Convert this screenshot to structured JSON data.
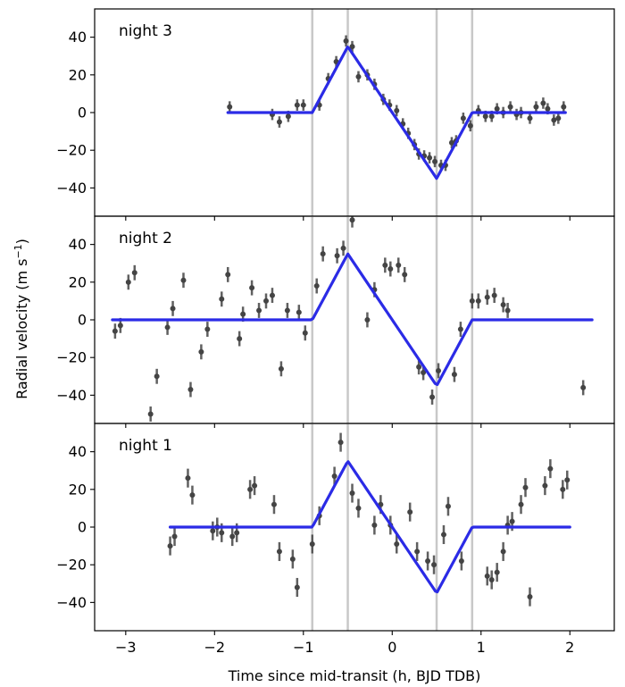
{
  "chart_data": {
    "type": "scatter",
    "xlabel": "Time since mid-transit (h, BJD TDB)",
    "ylabel": "Radial velocity (m s",
    "ylabel_exponent": "−1",
    "ylabel_close": ")",
    "xlim": [
      -3.35,
      2.5
    ],
    "ylim": [
      -55,
      55
    ],
    "x_ticks": [
      -3,
      -2,
      -1,
      0,
      1,
      2
    ],
    "y_ticks": [
      -40,
      -20,
      0,
      20,
      40
    ],
    "vertical_lines": [
      -0.9,
      -0.5,
      0.5,
      0.9
    ],
    "colors": {
      "model": "#2b2be6",
      "points": "#444444",
      "vlines": "#c8c8c8"
    },
    "model": {
      "amplitude": 35,
      "ingress_start": -0.9,
      "peak": -0.5,
      "trough": 0.5,
      "egress_end": 0.9
    },
    "panels": [
      {
        "title": "night 3",
        "model_range": [
          -1.85,
          1.95
        ],
        "points": [
          {
            "x": -1.83,
            "y": 3,
            "e": 3
          },
          {
            "x": -1.35,
            "y": -1,
            "e": 3
          },
          {
            "x": -1.27,
            "y": -5,
            "e": 3
          },
          {
            "x": -1.17,
            "y": -2,
            "e": 3
          },
          {
            "x": -1.07,
            "y": 4,
            "e": 3
          },
          {
            "x": -1.0,
            "y": 4,
            "e": 3
          },
          {
            "x": -0.82,
            "y": 4,
            "e": 3
          },
          {
            "x": -0.72,
            "y": 18,
            "e": 3
          },
          {
            "x": -0.63,
            "y": 27,
            "e": 3
          },
          {
            "x": -0.52,
            "y": 38,
            "e": 3
          },
          {
            "x": -0.45,
            "y": 35,
            "e": 3
          },
          {
            "x": -0.38,
            "y": 19,
            "e": 3
          },
          {
            "x": -0.28,
            "y": 20,
            "e": 3
          },
          {
            "x": -0.2,
            "y": 15,
            "e": 3
          },
          {
            "x": -0.1,
            "y": 7,
            "e": 3
          },
          {
            "x": -0.03,
            "y": 4,
            "e": 3
          },
          {
            "x": 0.05,
            "y": 1,
            "e": 3
          },
          {
            "x": 0.12,
            "y": -6,
            "e": 3
          },
          {
            "x": 0.18,
            "y": -11,
            "e": 3
          },
          {
            "x": 0.25,
            "y": -17,
            "e": 3
          },
          {
            "x": 0.3,
            "y": -22,
            "e": 3
          },
          {
            "x": 0.36,
            "y": -23,
            "e": 3
          },
          {
            "x": 0.42,
            "y": -24,
            "e": 3
          },
          {
            "x": 0.48,
            "y": -26,
            "e": 3
          },
          {
            "x": 0.55,
            "y": -28,
            "e": 3
          },
          {
            "x": 0.6,
            "y": -28,
            "e": 3
          },
          {
            "x": 0.67,
            "y": -16,
            "e": 3
          },
          {
            "x": 0.72,
            "y": -15,
            "e": 3
          },
          {
            "x": 0.8,
            "y": -3,
            "e": 3
          },
          {
            "x": 0.88,
            "y": -7,
            "e": 3
          },
          {
            "x": 0.97,
            "y": 1,
            "e": 3
          },
          {
            "x": 1.05,
            "y": -2,
            "e": 3
          },
          {
            "x": 1.12,
            "y": -2,
            "e": 3
          },
          {
            "x": 1.18,
            "y": 2,
            "e": 3
          },
          {
            "x": 1.25,
            "y": 0,
            "e": 3
          },
          {
            "x": 1.33,
            "y": 3,
            "e": 3
          },
          {
            "x": 1.4,
            "y": -1,
            "e": 3
          },
          {
            "x": 1.45,
            "y": 0,
            "e": 3
          },
          {
            "x": 1.55,
            "y": -3,
            "e": 3
          },
          {
            "x": 1.62,
            "y": 3,
            "e": 3
          },
          {
            "x": 1.7,
            "y": 5,
            "e": 3
          },
          {
            "x": 1.75,
            "y": 2,
            "e": 3
          },
          {
            "x": 1.82,
            "y": -4,
            "e": 3
          },
          {
            "x": 1.87,
            "y": -3,
            "e": 3
          },
          {
            "x": 1.93,
            "y": 3,
            "e": 3
          }
        ]
      },
      {
        "title": "night 2",
        "model_range": [
          -3.15,
          2.25
        ],
        "points": [
          {
            "x": -3.12,
            "y": -6,
            "e": 4
          },
          {
            "x": -3.06,
            "y": -3,
            "e": 4
          },
          {
            "x": -2.97,
            "y": 20,
            "e": 4
          },
          {
            "x": -2.9,
            "y": 25,
            "e": 4
          },
          {
            "x": -2.72,
            "y": -50,
            "e": 4
          },
          {
            "x": -2.65,
            "y": -30,
            "e": 4
          },
          {
            "x": -2.53,
            "y": -4,
            "e": 4
          },
          {
            "x": -2.47,
            "y": 6,
            "e": 4
          },
          {
            "x": -2.35,
            "y": 21,
            "e": 4
          },
          {
            "x": -2.27,
            "y": -37,
            "e": 4
          },
          {
            "x": -2.15,
            "y": -17,
            "e": 4
          },
          {
            "x": -2.08,
            "y": -5,
            "e": 4
          },
          {
            "x": -1.92,
            "y": 11,
            "e": 4
          },
          {
            "x": -1.85,
            "y": 24,
            "e": 4
          },
          {
            "x": -1.72,
            "y": -10,
            "e": 4
          },
          {
            "x": -1.68,
            "y": 3,
            "e": 4
          },
          {
            "x": -1.58,
            "y": 17,
            "e": 4
          },
          {
            "x": -1.5,
            "y": 5,
            "e": 4
          },
          {
            "x": -1.42,
            "y": 10,
            "e": 4
          },
          {
            "x": -1.35,
            "y": 13,
            "e": 4
          },
          {
            "x": -1.25,
            "y": -26,
            "e": 4
          },
          {
            "x": -1.18,
            "y": 5,
            "e": 4
          },
          {
            "x": -1.05,
            "y": 4,
            "e": 4
          },
          {
            "x": -0.98,
            "y": -7,
            "e": 4
          },
          {
            "x": -0.85,
            "y": 18,
            "e": 4
          },
          {
            "x": -0.78,
            "y": 35,
            "e": 4
          },
          {
            "x": -0.62,
            "y": 34,
            "e": 4
          },
          {
            "x": -0.55,
            "y": 38,
            "e": 4
          },
          {
            "x": -0.45,
            "y": 53,
            "e": 4
          },
          {
            "x": -0.28,
            "y": 0,
            "e": 4
          },
          {
            "x": -0.2,
            "y": 16,
            "e": 4
          },
          {
            "x": -0.08,
            "y": 29,
            "e": 4
          },
          {
            "x": -0.02,
            "y": 27,
            "e": 4
          },
          {
            "x": 0.07,
            "y": 29,
            "e": 4
          },
          {
            "x": 0.14,
            "y": 24,
            "e": 4
          },
          {
            "x": 0.3,
            "y": -25,
            "e": 4
          },
          {
            "x": 0.35,
            "y": -28,
            "e": 4
          },
          {
            "x": 0.45,
            "y": -41,
            "e": 4
          },
          {
            "x": 0.52,
            "y": -27,
            "e": 4
          },
          {
            "x": 0.7,
            "y": -29,
            "e": 4
          },
          {
            "x": 0.77,
            "y": -5,
            "e": 4
          },
          {
            "x": 0.9,
            "y": 10,
            "e": 4
          },
          {
            "x": 0.97,
            "y": 10,
            "e": 4
          },
          {
            "x": 1.07,
            "y": 12,
            "e": 4
          },
          {
            "x": 1.15,
            "y": 13,
            "e": 4
          },
          {
            "x": 1.25,
            "y": 8,
            "e": 4
          },
          {
            "x": 1.3,
            "y": 5,
            "e": 4
          },
          {
            "x": 2.15,
            "y": -36,
            "e": 4
          }
        ]
      },
      {
        "title": "night 1",
        "model_range": [
          -2.5,
          2.0
        ],
        "points": [
          {
            "x": -2.5,
            "y": -10,
            "e": 5
          },
          {
            "x": -2.45,
            "y": -5,
            "e": 5
          },
          {
            "x": -2.3,
            "y": 26,
            "e": 5
          },
          {
            "x": -2.25,
            "y": 17,
            "e": 5
          },
          {
            "x": -2.02,
            "y": -2,
            "e": 5
          },
          {
            "x": -1.97,
            "y": 0,
            "e": 5
          },
          {
            "x": -1.92,
            "y": -3,
            "e": 5
          },
          {
            "x": -1.8,
            "y": -5,
            "e": 5
          },
          {
            "x": -1.75,
            "y": -3,
            "e": 5
          },
          {
            "x": -1.6,
            "y": 20,
            "e": 5
          },
          {
            "x": -1.55,
            "y": 22,
            "e": 5
          },
          {
            "x": -1.33,
            "y": 12,
            "e": 5
          },
          {
            "x": -1.27,
            "y": -13,
            "e": 5
          },
          {
            "x": -1.12,
            "y": -17,
            "e": 5
          },
          {
            "x": -1.07,
            "y": -32,
            "e": 5
          },
          {
            "x": -0.9,
            "y": -9,
            "e": 5
          },
          {
            "x": -0.82,
            "y": 6,
            "e": 5
          },
          {
            "x": -0.65,
            "y": 27,
            "e": 5
          },
          {
            "x": -0.58,
            "y": 45,
            "e": 5
          },
          {
            "x": -0.45,
            "y": 18,
            "e": 5
          },
          {
            "x": -0.38,
            "y": 10,
            "e": 5
          },
          {
            "x": -0.2,
            "y": 1,
            "e": 5
          },
          {
            "x": -0.13,
            "y": 12,
            "e": 5
          },
          {
            "x": -0.02,
            "y": 1,
            "e": 5
          },
          {
            "x": 0.05,
            "y": -9,
            "e": 5
          },
          {
            "x": 0.2,
            "y": 8,
            "e": 5
          },
          {
            "x": 0.28,
            "y": -13,
            "e": 5
          },
          {
            "x": 0.4,
            "y": -18,
            "e": 5
          },
          {
            "x": 0.47,
            "y": -20,
            "e": 5
          },
          {
            "x": 0.58,
            "y": -4,
            "e": 5
          },
          {
            "x": 0.63,
            "y": 11,
            "e": 5
          },
          {
            "x": 0.78,
            "y": -18,
            "e": 5
          },
          {
            "x": 1.07,
            "y": -26,
            "e": 5
          },
          {
            "x": 1.12,
            "y": -28,
            "e": 5
          },
          {
            "x": 1.18,
            "y": -24,
            "e": 5
          },
          {
            "x": 1.25,
            "y": -13,
            "e": 5
          },
          {
            "x": 1.3,
            "y": 1,
            "e": 5
          },
          {
            "x": 1.35,
            "y": 3,
            "e": 5
          },
          {
            "x": 1.45,
            "y": 12,
            "e": 5
          },
          {
            "x": 1.5,
            "y": 21,
            "e": 5
          },
          {
            "x": 1.55,
            "y": -37,
            "e": 5
          },
          {
            "x": 1.72,
            "y": 22,
            "e": 5
          },
          {
            "x": 1.78,
            "y": 31,
            "e": 5
          },
          {
            "x": 1.92,
            "y": 20,
            "e": 5
          },
          {
            "x": 1.97,
            "y": 25,
            "e": 5
          }
        ]
      }
    ]
  }
}
